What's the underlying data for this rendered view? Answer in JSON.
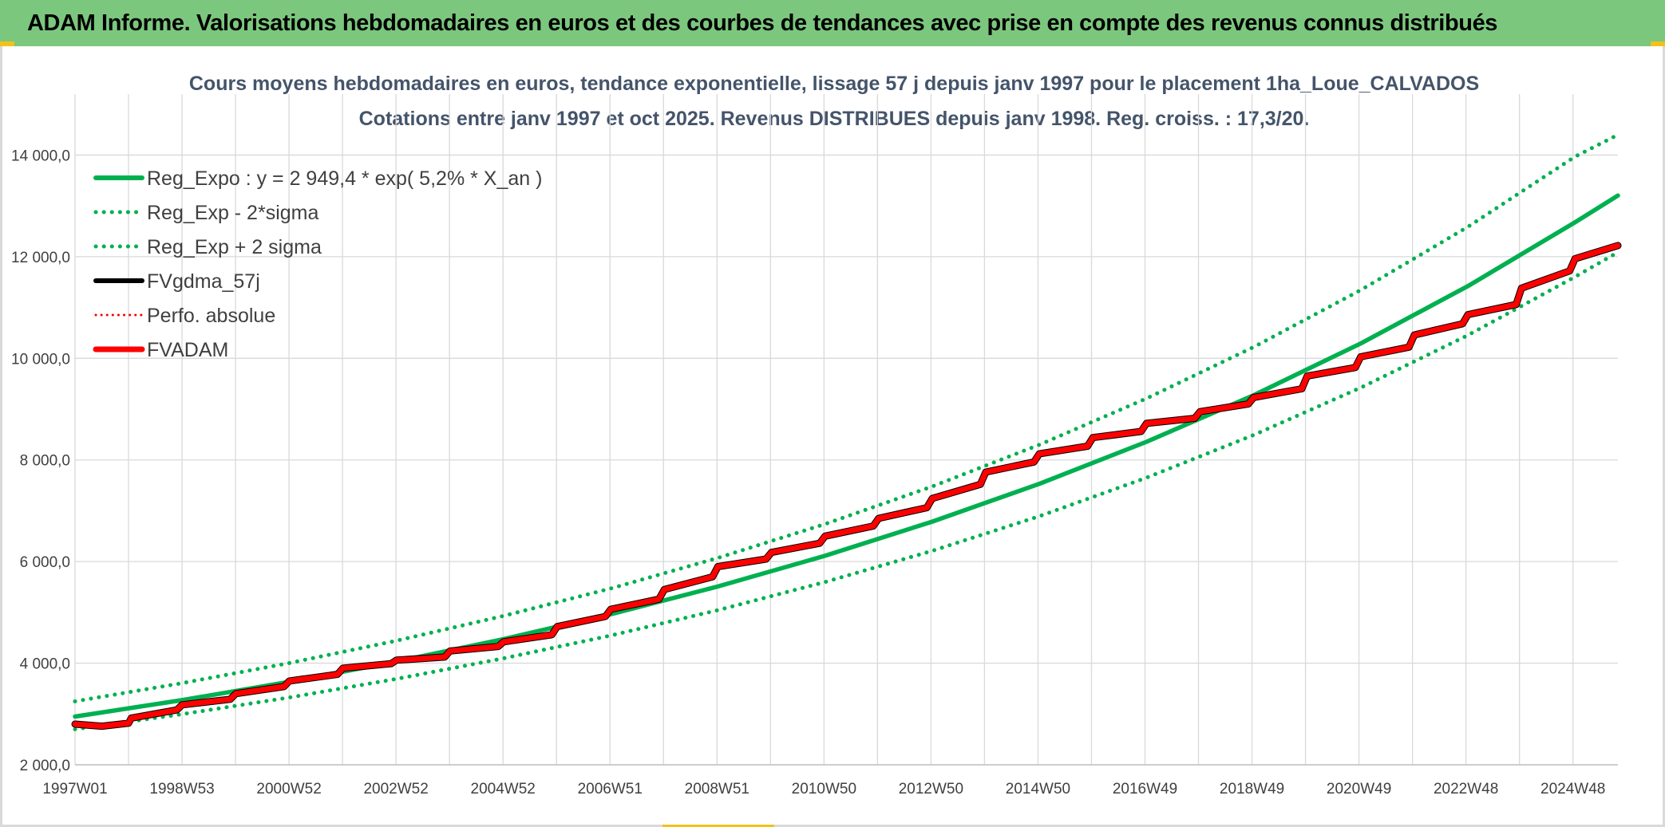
{
  "header": {
    "title": "ADAM Informe. Valorisations hebdomadaires en euros et des courbes de tendances avec prise en compte des revenus connus distribués"
  },
  "chart_data": {
    "type": "line",
    "title": "Cours moyens hebdomadaires en euros, tendance exponentielle, lissage 57 j depuis janv 1997 pour le placement 1ha_Loue_CALVADOS",
    "subtitle": "Cotations entre janv 1997 et oct 2025. Revenus DISTRIBUES depuis janv 1998. Reg. croiss. : 17,3/20.",
    "x_ticks": [
      "1997W01",
      "1998W53",
      "2000W52",
      "2002W52",
      "2004W52",
      "2006W51",
      "2008W51",
      "2010W50",
      "2012W50",
      "2014W50",
      "2016W49",
      "2018W49",
      "2020W49",
      "2022W48",
      "2024W48"
    ],
    "x_range": [
      1997.0,
      2025.8
    ],
    "y_ticks": [
      "2 000,0",
      "4 000,0",
      "6 000,0",
      "8 000,0",
      "10 000,0",
      "12 000,0",
      "14 000,0"
    ],
    "ylim": [
      2000,
      15200
    ],
    "grid": true,
    "legend_position": "top-left",
    "series": [
      {
        "name": "Reg_Expo : y = 2 949,4 * exp( 5,2% *  X_an )",
        "style": "solid",
        "color": "#00b050",
        "x": [
          1997,
          1999,
          2001,
          2003,
          2005,
          2007,
          2009,
          2011,
          2013,
          2015,
          2017,
          2019,
          2021,
          2023,
          2025,
          2025.8
        ],
        "values": [
          2949,
          3273,
          3632,
          4031,
          4473,
          4964,
          5509,
          6114,
          6785,
          7530,
          8357,
          9274,
          10292,
          11422,
          12676,
          13204
        ]
      },
      {
        "name": "Reg_Exp - 2*sigma",
        "style": "dotted",
        "color": "#00b050",
        "x": [
          1997,
          1999,
          2001,
          2003,
          2005,
          2007,
          2009,
          2011,
          2013,
          2015,
          2017,
          2019,
          2021,
          2023,
          2025,
          2025.8
        ],
        "values": [
          2700,
          2996,
          3325,
          3690,
          4095,
          4544,
          5043,
          5597,
          6211,
          6893,
          7650,
          8490,
          9422,
          10456,
          11604,
          12087
        ]
      },
      {
        "name": "Reg_Exp + 2 sigma",
        "style": "dotted",
        "color": "#00b050",
        "x": [
          1997,
          1999,
          2001,
          2003,
          2005,
          2007,
          2009,
          2011,
          2013,
          2015,
          2017,
          2019,
          2021,
          2023,
          2025,
          2025.8
        ],
        "values": [
          3250,
          3607,
          4003,
          4442,
          4930,
          5471,
          6072,
          6738,
          7478,
          8299,
          9210,
          10221,
          11343,
          12588,
          13970,
          14400
        ]
      },
      {
        "name": "FVgdma_57j",
        "style": "solid",
        "color": "#000000",
        "x": [
          1997.0,
          1997.5,
          1998.0,
          1998.05,
          1998.9,
          1999.0,
          1999.9,
          2000.0,
          2000.9,
          2001.0,
          2001.9,
          2002.0,
          2002.9,
          2003.0,
          2003.9,
          2004.0,
          2004.9,
          2005.0,
          2005.9,
          2006.0,
          2006.9,
          2007.0,
          2007.9,
          2008.0,
          2008.9,
          2009.0,
          2009.9,
          2010.0,
          2010.9,
          2011.0,
          2011.9,
          2012.0,
          2012.9,
          2013.0,
          2013.9,
          2014.0,
          2014.9,
          2015.0,
          2015.9,
          2016.0,
          2016.9,
          2017.0,
          2017.9,
          2018.0,
          2018.9,
          2019.0,
          2019.9,
          2020.0,
          2020.9,
          2021.0,
          2021.9,
          2022.0,
          2022.9,
          2023.0,
          2023.9,
          2024.0,
          2024.9,
          2025.0,
          2025.8
        ],
        "values": [
          2800,
          2760,
          2820,
          2920,
          3080,
          3180,
          3290,
          3400,
          3540,
          3650,
          3780,
          3900,
          3990,
          4060,
          4120,
          4240,
          4330,
          4420,
          4560,
          4720,
          4920,
          5060,
          5260,
          5450,
          5700,
          5900,
          6050,
          6180,
          6360,
          6500,
          6700,
          6850,
          7060,
          7240,
          7520,
          7760,
          7960,
          8120,
          8270,
          8440,
          8560,
          8720,
          8820,
          8950,
          9100,
          9230,
          9400,
          9650,
          9820,
          10030,
          10220,
          10460,
          10680,
          10860,
          11060,
          11380,
          11720,
          11960,
          12220
        ]
      },
      {
        "name": "Perfo. absolue",
        "style": "dotted",
        "color": "#ff0000",
        "x": [
          1997.0,
          1997.5,
          1998.0,
          1998.05,
          1998.9,
          1999.0,
          1999.9,
          2000.0,
          2000.9,
          2001.0,
          2001.9,
          2002.0,
          2002.9,
          2003.0,
          2003.9,
          2004.0,
          2004.9,
          2005.0,
          2005.9,
          2006.0,
          2006.9,
          2007.0,
          2007.9,
          2008.0,
          2008.9,
          2009.0,
          2009.9,
          2010.0,
          2010.9,
          2011.0,
          2011.9,
          2012.0,
          2012.9,
          2013.0,
          2013.9,
          2014.0,
          2014.9,
          2015.0,
          2015.9,
          2016.0,
          2016.9,
          2017.0,
          2017.9,
          2018.0,
          2018.9,
          2019.0,
          2019.9,
          2020.0,
          2020.9,
          2021.0,
          2021.9,
          2022.0,
          2022.9,
          2023.0,
          2023.9,
          2024.0,
          2024.9,
          2025.0,
          2025.8
        ],
        "values": [
          2800,
          2760,
          2820,
          2920,
          3080,
          3180,
          3290,
          3400,
          3540,
          3650,
          3780,
          3900,
          3990,
          4060,
          4120,
          4240,
          4330,
          4420,
          4560,
          4720,
          4920,
          5060,
          5260,
          5450,
          5700,
          5900,
          6050,
          6180,
          6360,
          6500,
          6700,
          6850,
          7060,
          7240,
          7520,
          7760,
          7960,
          8120,
          8270,
          8440,
          8560,
          8720,
          8820,
          8950,
          9100,
          9230,
          9400,
          9650,
          9820,
          10030,
          10220,
          10460,
          10680,
          10860,
          11060,
          11380,
          11720,
          11960,
          12220
        ]
      },
      {
        "name": "FVADAM",
        "style": "solid",
        "color": "#ff0000",
        "x": [
          1997.0,
          1997.5,
          1998.0,
          1998.05,
          1998.9,
          1999.0,
          1999.9,
          2000.0,
          2000.9,
          2001.0,
          2001.9,
          2002.0,
          2002.9,
          2003.0,
          2003.9,
          2004.0,
          2004.9,
          2005.0,
          2005.9,
          2006.0,
          2006.9,
          2007.0,
          2007.9,
          2008.0,
          2008.9,
          2009.0,
          2009.9,
          2010.0,
          2010.9,
          2011.0,
          2011.9,
          2012.0,
          2012.9,
          2013.0,
          2013.9,
          2014.0,
          2014.9,
          2015.0,
          2015.9,
          2016.0,
          2016.9,
          2017.0,
          2017.9,
          2018.0,
          2018.9,
          2019.0,
          2019.9,
          2020.0,
          2020.9,
          2021.0,
          2021.9,
          2022.0,
          2022.9,
          2023.0,
          2023.9,
          2024.0,
          2024.9,
          2025.0,
          2025.8
        ],
        "values": [
          2800,
          2760,
          2820,
          2920,
          3080,
          3180,
          3290,
          3400,
          3540,
          3650,
          3780,
          3900,
          3990,
          4060,
          4120,
          4240,
          4330,
          4420,
          4560,
          4720,
          4920,
          5060,
          5260,
          5450,
          5700,
          5900,
          6050,
          6180,
          6360,
          6500,
          6700,
          6850,
          7060,
          7240,
          7520,
          7760,
          7960,
          8120,
          8270,
          8440,
          8560,
          8720,
          8820,
          8950,
          9100,
          9230,
          9400,
          9650,
          9820,
          10030,
          10220,
          10460,
          10680,
          10860,
          11060,
          11380,
          11720,
          11960,
          12220
        ]
      }
    ]
  }
}
